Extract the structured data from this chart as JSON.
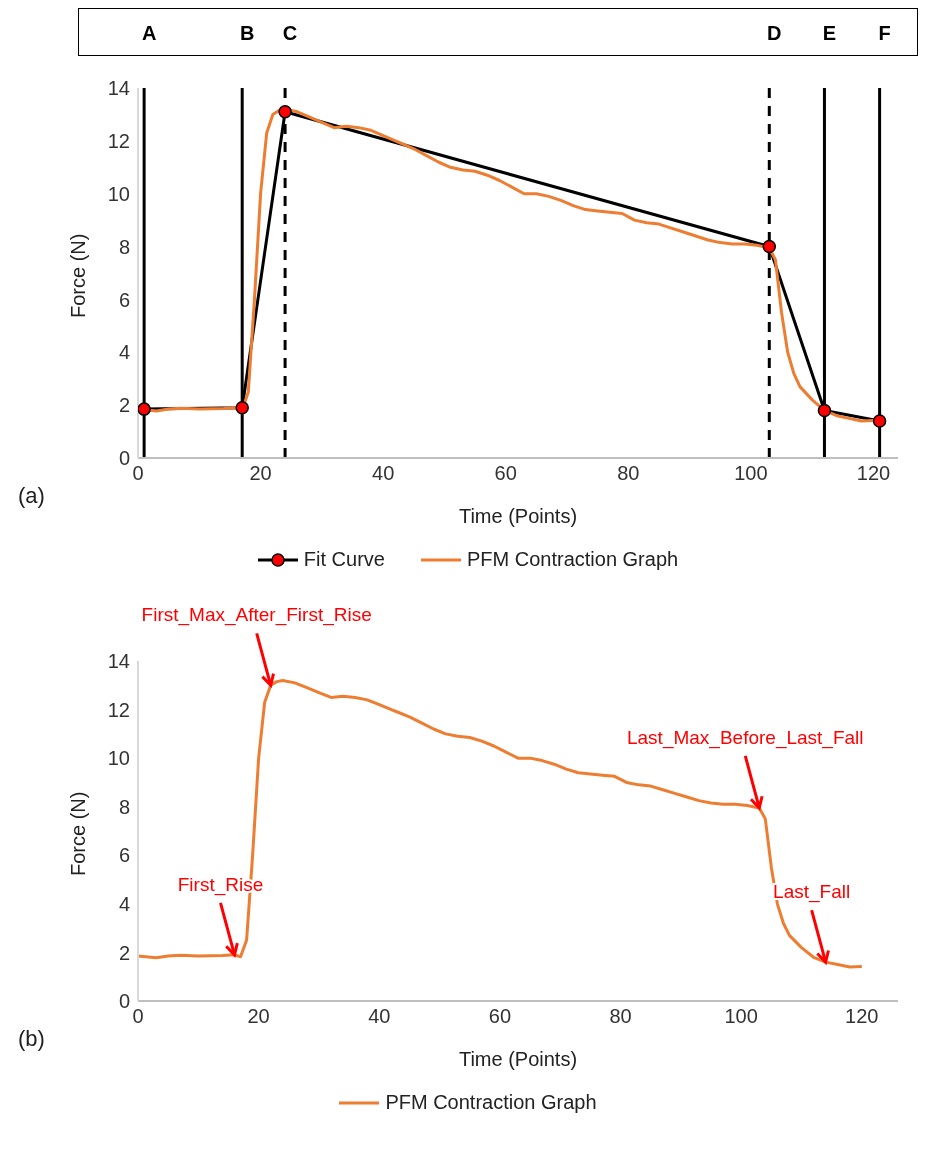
{
  "chart_data": [
    {
      "type": "line",
      "xlabel": "Time (Points)",
      "ylabel": "Force (N)",
      "xlim": [
        0,
        124
      ],
      "ylim": [
        0,
        14
      ],
      "xticks": [
        0,
        20,
        40,
        60,
        80,
        100,
        120
      ],
      "yticks": [
        0,
        2,
        4,
        6,
        8,
        10,
        12,
        14
      ],
      "grid": false,
      "legend": "bottom",
      "line_style": "solid",
      "annotations": [
        "(a)"
      ],
      "ref_lines": [
        {
          "axis": "x",
          "value": 1,
          "label": "A",
          "line_style": "solid",
          "color": "#000000"
        },
        {
          "axis": "x",
          "value": 17,
          "label": "B",
          "line_style": "solid",
          "color": "#000000"
        },
        {
          "axis": "x",
          "value": 24,
          "label": "C",
          "line_style": "dashed",
          "color": "#000000"
        },
        {
          "axis": "x",
          "value": 103,
          "label": "D",
          "line_style": "dashed",
          "color": "#000000"
        },
        {
          "axis": "x",
          "value": 112,
          "label": "E",
          "line_style": "solid",
          "color": "#000000"
        },
        {
          "axis": "x",
          "value": 121,
          "label": "F",
          "line_style": "solid",
          "color": "#000000"
        }
      ],
      "series": [
        {
          "name": "Fit Curve",
          "color": "#000000",
          "marker": "circle",
          "x": [
            1,
            17,
            24,
            103,
            112,
            121
          ],
          "values": [
            1.85,
            1.9,
            13.1,
            8.0,
            1.8,
            1.4
          ]
        },
        {
          "name": "PFM Contraction Graph",
          "color": "#ed7d31",
          "marker": "none",
          "x": [
            0,
            3,
            5,
            7,
            10,
            14,
            16,
            17,
            18,
            19,
            20,
            21,
            22,
            23,
            24,
            26,
            28,
            30,
            32,
            34,
            36,
            38,
            40,
            42,
            43,
            45,
            47,
            49,
            51,
            53,
            55,
            57,
            59,
            61,
            63,
            65,
            67,
            69,
            71,
            73,
            75,
            77,
            79,
            81,
            83,
            85,
            87,
            89,
            91,
            93,
            95,
            97,
            99,
            101,
            103,
            104,
            105,
            106,
            107,
            108,
            110,
            112,
            114,
            116,
            118,
            120
          ],
          "values": [
            1.85,
            1.78,
            1.85,
            1.88,
            1.85,
            1.87,
            1.9,
            1.82,
            2.5,
            6,
            10,
            12.3,
            13.0,
            13.15,
            13.2,
            13.1,
            12.9,
            12.7,
            12.5,
            12.55,
            12.5,
            12.4,
            12.2,
            12.0,
            11.9,
            11.7,
            11.45,
            11.2,
            11.0,
            10.9,
            10.85,
            10.7,
            10.5,
            10.25,
            10.0,
            10.0,
            9.9,
            9.75,
            9.55,
            9.4,
            9.35,
            9.3,
            9.25,
            9.0,
            8.9,
            8.85,
            8.7,
            8.55,
            8.4,
            8.25,
            8.15,
            8.1,
            8.1,
            8.05,
            7.95,
            7.5,
            5.5,
            4.0,
            3.2,
            2.7,
            2.2,
            1.8,
            1.6,
            1.5,
            1.4,
            1.42
          ]
        }
      ]
    },
    {
      "type": "line",
      "xlabel": "Time (Points)",
      "ylabel": "Force (N)",
      "xlim": [
        0,
        126
      ],
      "ylim": [
        0,
        14
      ],
      "xticks": [
        0,
        20,
        40,
        60,
        80,
        100,
        120
      ],
      "yticks": [
        0,
        2,
        4,
        6,
        8,
        10,
        12,
        14
      ],
      "grid": false,
      "legend": "bottom",
      "line_style": "solid",
      "annotations": [
        "(b)",
        {
          "text": "First_Rise",
          "x": 16,
          "y": 1.9
        },
        {
          "text": "First_Max_After_First_Rise",
          "x": 22,
          "y": 13.0
        },
        {
          "text": "Last_Max_Before_Last_Fall",
          "x": 103,
          "y": 7.95
        },
        {
          "text": "Last_Fall",
          "x": 114,
          "y": 1.6
        }
      ],
      "series": [
        {
          "name": "PFM Contraction Graph",
          "color": "#ed7d31",
          "marker": "none",
          "x": [
            0,
            3,
            5,
            7,
            10,
            14,
            16,
            17,
            18,
            19,
            20,
            21,
            22,
            23,
            24,
            26,
            28,
            30,
            32,
            34,
            36,
            38,
            40,
            42,
            43,
            45,
            47,
            49,
            51,
            53,
            55,
            57,
            59,
            61,
            63,
            65,
            67,
            69,
            71,
            73,
            75,
            77,
            79,
            81,
            83,
            85,
            87,
            89,
            91,
            93,
            95,
            97,
            99,
            101,
            103,
            104,
            105,
            106,
            107,
            108,
            110,
            112,
            114,
            116,
            118,
            120
          ],
          "values": [
            1.85,
            1.78,
            1.85,
            1.88,
            1.85,
            1.87,
            1.9,
            1.82,
            2.5,
            6,
            10,
            12.3,
            13.0,
            13.15,
            13.2,
            13.1,
            12.9,
            12.7,
            12.5,
            12.55,
            12.5,
            12.4,
            12.2,
            12.0,
            11.9,
            11.7,
            11.45,
            11.2,
            11.0,
            10.9,
            10.85,
            10.7,
            10.5,
            10.25,
            10.0,
            10.0,
            9.9,
            9.75,
            9.55,
            9.4,
            9.35,
            9.3,
            9.25,
            9.0,
            8.9,
            8.85,
            8.7,
            8.55,
            8.4,
            8.25,
            8.15,
            8.1,
            8.1,
            8.05,
            7.95,
            7.5,
            5.5,
            4.0,
            3.2,
            2.7,
            2.2,
            1.8,
            1.6,
            1.5,
            1.4,
            1.42
          ]
        }
      ]
    }
  ]
}
